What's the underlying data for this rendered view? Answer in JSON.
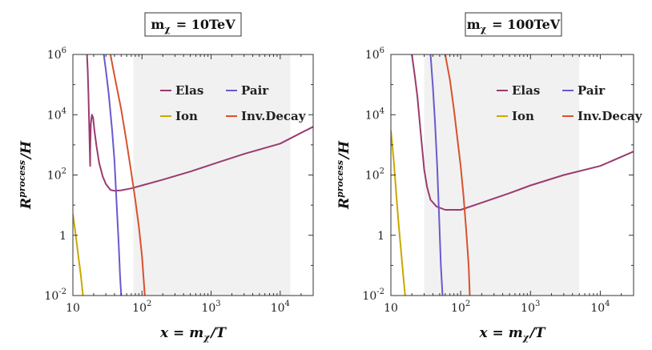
{
  "chart_data": [
    {
      "type": "line",
      "title": "m_χ = 10TeV",
      "xlabel": "x = m_χ/T",
      "ylabel": "R^process/H",
      "xscale": "log",
      "yscale": "log",
      "xlim": [
        10,
        30000
      ],
      "ylim": [
        0.01,
        1000000
      ],
      "x_ticks": [
        "10",
        "10^2",
        "10^3",
        "10^4"
      ],
      "y_ticks": [
        "10^-2",
        "1",
        "10^2",
        "10^4",
        "10^6"
      ],
      "shaded_region": [
        75,
        14000
      ],
      "legend_position": "top-right",
      "series": [
        {
          "name": "Elas",
          "color": "#9b3a6e",
          "points": [
            [
              16.0,
              1000000
            ],
            [
              16.4,
              300000
            ],
            [
              16.8,
              50000
            ],
            [
              17.2,
              5000
            ],
            [
              17.5,
              800
            ],
            [
              17.8,
              200
            ],
            [
              17.8,
              600
            ],
            [
              18.2,
              5000
            ],
            [
              18.8,
              10000
            ],
            [
              19.6,
              8000
            ],
            [
              20.5,
              3000
            ],
            [
              22,
              900
            ],
            [
              24,
              250
            ],
            [
              27,
              90
            ],
            [
              30,
              50
            ],
            [
              35,
              32
            ],
            [
              40,
              30
            ],
            [
              50,
              31
            ],
            [
              70,
              36
            ],
            [
              100,
              45
            ],
            [
              200,
              70
            ],
            [
              500,
              130
            ],
            [
              1000,
              220
            ],
            [
              3000,
              500
            ],
            [
              10000,
              1100
            ],
            [
              30000,
              4000
            ]
          ]
        },
        {
          "name": "Pair",
          "color": "#6a5acd",
          "points": [
            [
              28,
              1000000
            ],
            [
              30,
              300000
            ],
            [
              33,
              50000
            ],
            [
              37,
              3000
            ],
            [
              40,
              300
            ],
            [
              43,
              10
            ],
            [
              46,
              0.5
            ],
            [
              48,
              0.05
            ],
            [
              50,
              0.01
            ]
          ]
        },
        {
          "name": "Ion",
          "color": "#c9a800",
          "points": [
            [
              10,
              5
            ],
            [
              11,
              1
            ],
            [
              12,
              0.2
            ],
            [
              13,
              0.05
            ],
            [
              14,
              0.01
            ]
          ]
        },
        {
          "name": "Inv.Decay",
          "color": "#d9512e",
          "points": [
            [
              35,
              1000000
            ],
            [
              40,
              200000
            ],
            [
              50,
              15000
            ],
            [
              60,
              1200
            ],
            [
              70,
              120
            ],
            [
              80,
              15
            ],
            [
              90,
              2
            ],
            [
              100,
              0.2
            ],
            [
              110,
              0.01
            ]
          ]
        }
      ]
    },
    {
      "type": "line",
      "title": "m_χ = 100TeV",
      "xlabel": "x = m_χ/T",
      "ylabel": "R^process/H",
      "xscale": "log",
      "yscale": "log",
      "xlim": [
        10,
        30000
      ],
      "ylim": [
        0.01,
        1000000
      ],
      "x_ticks": [
        "10",
        "10^2",
        "10^3",
        "10^4"
      ],
      "y_ticks": [
        "10^-2",
        "1",
        "10^2",
        "10^4",
        "10^6"
      ],
      "shaded_region": [
        30,
        5000
      ],
      "legend_position": "top-right",
      "series": [
        {
          "name": "Elas",
          "color": "#9b3a6e",
          "points": [
            [
              20,
              1000000
            ],
            [
              22,
              200000
            ],
            [
              24,
              40000
            ],
            [
              26,
              5000
            ],
            [
              28,
              800
            ],
            [
              30,
              150
            ],
            [
              33,
              40
            ],
            [
              37,
              15
            ],
            [
              45,
              9
            ],
            [
              60,
              7
            ],
            [
              100,
              7
            ],
            [
              200,
              12
            ],
            [
              500,
              25
            ],
            [
              1000,
              45
            ],
            [
              3000,
              100
            ],
            [
              10000,
              200
            ],
            [
              30000,
              600
            ]
          ]
        },
        {
          "name": "Pair",
          "color": "#6a5acd",
          "points": [
            [
              37,
              1000000
            ],
            [
              40,
              80000
            ],
            [
              43,
              5000
            ],
            [
              46,
              200
            ],
            [
              49,
              5
            ],
            [
              52,
              0.1
            ],
            [
              55,
              0.01
            ]
          ]
        },
        {
          "name": "Ion",
          "color": "#c9a800",
          "points": [
            [
              10,
              3000
            ],
            [
              11,
              300
            ],
            [
              12,
              20
            ],
            [
              13,
              2
            ],
            [
              14,
              0.3
            ],
            [
              15,
              0.05
            ],
            [
              16,
              0.01
            ]
          ]
        },
        {
          "name": "Inv.Decay",
          "color": "#d9512e",
          "points": [
            [
              60,
              1000000
            ],
            [
              70,
              150000
            ],
            [
              80,
              15000
            ],
            [
              90,
              1500
            ],
            [
              100,
              200
            ],
            [
              110,
              20
            ],
            [
              120,
              1.5
            ],
            [
              130,
              0.1
            ],
            [
              135,
              0.01
            ]
          ]
        }
      ]
    }
  ]
}
